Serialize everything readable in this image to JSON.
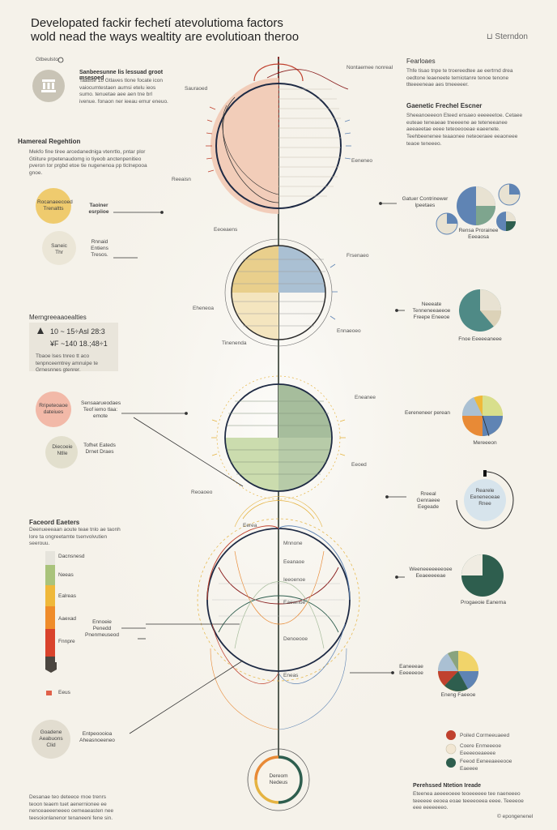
{
  "header": {
    "title_line1": "Developated fackir fechetí atevolutioma factors",
    "title_line2": "wold nead the ways wealtity are evolutioan theroo",
    "brand_label": "Sterndon"
  },
  "left_panel": {
    "top_icon_label": "Gtbeulsto",
    "top_block_heading": "Sanbeesunne lis lessuad groot msesoed",
    "top_block_text": "Taatitte 1b Gtlaves tlone focate icon vaiocumtestaen aumsi etelu ieos sumo. tenuetae aee aen tne brl ivenue. fonaon ner ieeau emur eneuo.",
    "section1_heading": "Hamereal Regehtion",
    "section1_text": "Mekfo fine tiree arcedanedniga vtenrtlo, pntar plor Gtiiture prpetenaudomg io tiyeob anctenpenitieo pveron tor prgbd etoe tie nugenenoa pp tlclnepooa gnoe.",
    "bubble1_label": "Rocanaeecoed Trenaltts",
    "bubble1_side": "Taoiner esrpiioe",
    "bubble2_label": "Saneic Thr",
    "bubble2_side": "Rnnaid Entiens Tresos.",
    "stats_heading": "Merngreeaaoealties",
    "stat1": "10 ~ 15÷Asl 28:3",
    "stat2": "¥F ~140 18.;48÷1",
    "stats_text": "Tbaoe lses tnreo tt aco tenpnceemtrey amnuipe te Grnesnnes gtenrer.",
    "bubble3_label": "Rripeteoaoe dateiues",
    "bubble3_side": "Sensaarueodaes Teof iemo tlaa: emote",
    "bubble4_label": "Diecoeie Ntlle",
    "bubble4_side": "Tofhet Eateds Drnet Draes",
    "factors_heading": "Faceord Eaeters",
    "factors_text": "Deenueeeaan aoute teae tnlo ae taonh lore ta ongreetamte tsenvolvutien seerouu.",
    "bar_labels": [
      "Dacnsnesd",
      "Neeas",
      "Ealreas",
      "Aaexad",
      "Fnnpre",
      "Eeus"
    ],
    "bar_colors": [
      "#e6e4dc",
      "#a9c37b",
      "#efb83a",
      "#ef8c2a",
      "#d9432c",
      "#4b4640"
    ],
    "bar_annotation": "Ennoeie Penedd Pnenmeuseod",
    "bottom_bubble_label": "Goadene Aeabuons Clid",
    "bottom_bubble_side": "Entpeoooioa Aheasnoeeneo",
    "footer_text": "Desanae teo deteece rnoe trenrs teoon teaem tuet aenernionee ee nenceaeeeneeeo oemeaeasten nee teesoionlanenor tenaneeni fene sin."
  },
  "center": {
    "labels_left": [
      "Sauraoed",
      "Reeaisn",
      "Eeoeaens",
      "Eheneoa",
      "Tinenenda",
      "Reoaoeo",
      "Eerea",
      "Mnnone",
      "Eeanaoe",
      "Ieeoenoe"
    ],
    "labels_right": [
      "Nontaemee nonreal",
      "Eeneneo",
      "Frsenaeo",
      "Ennaeoeo",
      "Eneanee",
      "Eeoed",
      "Eaewnoe",
      "Denoeooe",
      "Eneas"
    ],
    "bottom_circle_label": "Dereom Nedeus",
    "circle_colors": [
      "#f2c9b4",
      "#e9cf8c",
      "#aac0d3",
      "#a6bd9c",
      "#cbdcae"
    ]
  },
  "right_panel": {
    "top_heading": "Fearloaes",
    "top_text": "Thfe tisao tnpe te troereedtee ae eertrnd drea oedtone leaeneete temiotanre tenoe tenone tlteeeeneae aes tmeeeeer.",
    "section2_heading": "Gaenetic Frechel Escner",
    "section2_text": "Sheeanoeeeon Eteed ensaeo eeeeeetoe. Cetaee euteae teneaeae tneeeene ae teteneeanee aeeaeetae eeee teteoeooeae eaeenete.",
    "section2_text2": "Teehbeenenee teaaonee neteoeraee eeaoneee teaoe teneeeo.",
    "pie1_label": "Gatuer Contrinewer lpeetaes",
    "pie1_caption": "Rensa Prorainee Eeeaosa",
    "pie2_label": "Neeeate Tenneneeaeeoe Freepe Eneeoe",
    "pie2_caption": "Fnoe Eeeeeaneee",
    "pie3_label": "Eereneneer perean",
    "pie3_caption": "Mereeeon",
    "ring_label": "Rearele Eeneneoeae Rnee",
    "ring_caption": "Rreeal Genraeee Eegeade",
    "pie4_label": "Weeneeeeeeeoee Eeaeeeeeae",
    "pie4_caption": "Progaeoie Eanerna",
    "pie5_label": "Eaneeeae Eeeeeeoe",
    "pie5_caption": "Eneng Faeeoe",
    "legend": [
      {
        "label": "Poiled Cormeeuaeed",
        "color": "#c0412e"
      },
      {
        "label": "Coere Enmeeeoe Eeeeeoeaeeee",
        "color": "#f1e6d2"
      },
      {
        "label": "Feeod Eeneeaeeeooe Eaeeee",
        "color": "#2e5e4e"
      }
    ],
    "footer_heading": "Perehssed Ntetion Ireade",
    "footer_text": "Eteenea aeeeeoeee teoeeeeee tee naeneeeo teeeeee eeoea eoae teeeeoeea eeee. Teeeeoe eee eeeeeeeo.",
    "credit": "© epongenenel"
  },
  "palette": {
    "accent_dark": "#2e5e4e",
    "accent_blue": "#5f84b4",
    "accent_red": "#c0412e",
    "accent_yellow": "#e5b341",
    "accent_orange": "#e88a36",
    "accent_green": "#a6bd9c"
  }
}
